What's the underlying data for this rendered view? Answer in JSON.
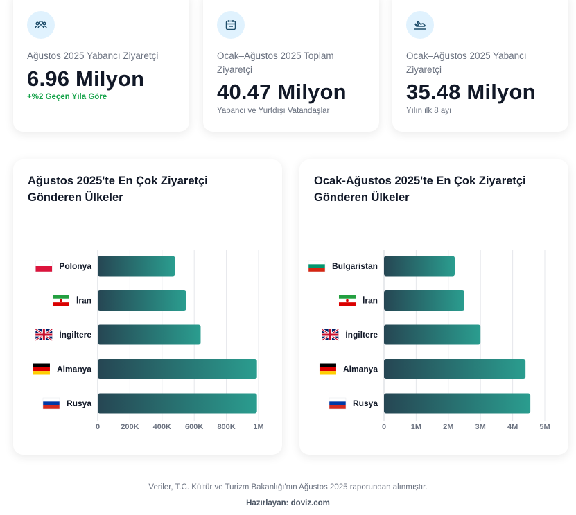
{
  "stats": [
    {
      "icon": "users-icon",
      "label": "Ağustos 2025 Yabancı Ziyaretçi",
      "value": "6.96 Milyon",
      "sub": "+%2 Geçen Yıla Göre",
      "sub_color": "#16a34a"
    },
    {
      "icon": "calendar-icon",
      "label": "Ocak–Ağustos 2025 Toplam Ziyaretçi",
      "value": "40.47 Milyon",
      "sub": "Yabancı ve Yurtdışı Vatandaşlar",
      "sub_color": "#6b7280"
    },
    {
      "icon": "plane-landing-icon",
      "label": "Ocak–Ağustos 2025 Yabancı Ziyaretçi",
      "value": "35.48 Milyon",
      "sub": "Yılın ilk 8 ayı",
      "sub_color": "#6b7280"
    }
  ],
  "chart_data": [
    {
      "type": "bar",
      "orientation": "horizontal",
      "title": "Ağustos 2025'te En Çok Ziyaretçi Gönderen Ülkeler",
      "categories": [
        "Polonya",
        "İran",
        "İngiltere",
        "Almanya",
        "Rusya"
      ],
      "flags": [
        "poland-flag-icon",
        "iran-flag-icon",
        "uk-flag-icon",
        "germany-flag-icon",
        "russia-flag-icon"
      ],
      "values": [
        480000,
        550000,
        640000,
        990000,
        990000
      ],
      "xlim": [
        0,
        1000000
      ],
      "ticks": [
        "0",
        "200K",
        "400K",
        "600K",
        "800K",
        "1M"
      ],
      "grid": true
    },
    {
      "type": "bar",
      "orientation": "horizontal",
      "title": "Ocak-Ağustos 2025'te En Çok Ziyaretçi Gönderen Ülkeler",
      "categories": [
        "Bulgaristan",
        "İran",
        "İngiltere",
        "Almanya",
        "Rusya"
      ],
      "flags": [
        "bulgaria-flag-icon",
        "iran-flag-icon",
        "uk-flag-icon",
        "germany-flag-icon",
        "russia-flag-icon"
      ],
      "values": [
        2200000,
        2500000,
        3000000,
        4400000,
        4550000
      ],
      "xlim": [
        0,
        5000000
      ],
      "ticks": [
        "0",
        "1M",
        "2M",
        "3M",
        "4M",
        "5M"
      ],
      "grid": true
    }
  ],
  "colors": {
    "bar_start": "#264653",
    "bar_end": "#2a9d8f",
    "accent_bg": "#e0f2fe",
    "icon": "#1f4e6b"
  },
  "footer": {
    "source": "Veriler, T.C. Kültür ve Turizm Bakanlığı'nın Ağustos 2025 raporundan alınmıştır.",
    "author": "Hazırlayan: doviz.com"
  }
}
